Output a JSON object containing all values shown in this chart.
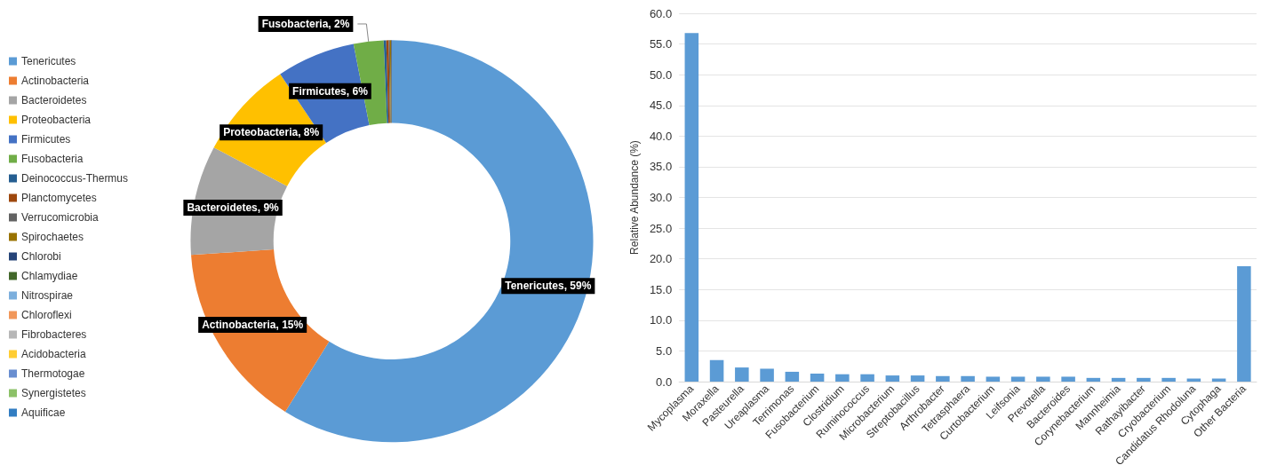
{
  "chart_data": [
    {
      "type": "donut",
      "categories": [
        "Tenericutes",
        "Actinobacteria",
        "Bacteroidetes",
        "Proteobacteria",
        "Firmicutes",
        "Fusobacteria",
        "Deinococcus-Thermus",
        "Planctomycetes",
        "Verrucomicrobia",
        "Spirochaetes",
        "Chlorobi",
        "Chlamydiae",
        "Nitrospirae",
        "Chloroflexi",
        "Fibrobacteres",
        "Acidobacteria",
        "Thermotogae",
        "Synergistetes",
        "Aquificae"
      ],
      "values": [
        58.8,
        15.0,
        8.8,
        7.9,
        6.3,
        2.4,
        0.2,
        0.2,
        0.1,
        0.1,
        0.05,
        null,
        null,
        null,
        null,
        null,
        null,
        null,
        null
      ],
      "colors": [
        "#5b9bd5",
        "#ed7d31",
        "#a5a5a5",
        "#ffc000",
        "#4472c4",
        "#70ad47",
        "#255e91",
        "#9e480e",
        "#636363",
        "#997300",
        "#264478",
        "#43682b",
        "#7cafdd",
        "#f1975a",
        "#b7b7b7",
        "#ffcd33",
        "#698ed0",
        "#8cc168",
        "#327dc2"
      ],
      "value_labels": [
        "Tenericutes, 59%",
        "Actinobacteria, 15%",
        "Bacteroidetes, 9%",
        "Proteobacteria, 8%",
        "Firmicutes, 6%",
        "Fusobacteria, 2%",
        null,
        null,
        null,
        null,
        null,
        null,
        null,
        null,
        null,
        null,
        null,
        null,
        null
      ],
      "legend": "left"
    },
    {
      "type": "bar",
      "ylabel": "Relative Abundance (%)",
      "categories": [
        "Mycoplasma",
        "Moraxella",
        "Pasteurella",
        "Ureaplasma",
        "Terrimonas",
        "Fusobacterium",
        "Clostridium",
        "Ruminococcus",
        "Microbacterium",
        "Streptobacillus",
        "Arthrobacter",
        "Tetrasphaera",
        "Curtobacterium",
        "Leifsonia",
        "Prevotella",
        "Bacteroides",
        "Corynebacterium",
        "Mannheimia",
        "Rathayibacter",
        "Cryobacterium",
        "Candidatus Rhodoluna",
        "Cytophaga",
        "Other Bacteria"
      ],
      "values": [
        56.8,
        3.5,
        2.3,
        2.1,
        1.6,
        1.3,
        1.2,
        1.2,
        1.0,
        1.0,
        0.9,
        0.9,
        0.8,
        0.8,
        0.8,
        0.8,
        0.6,
        0.6,
        0.6,
        0.6,
        0.5,
        0.5,
        18.8
      ],
      "color": "#5b9bd5",
      "ylim": [
        0,
        60
      ],
      "yticks": [
        {
          "value": 0,
          "label": "0.0"
        },
        {
          "value": 5,
          "label": "5.0"
        },
        {
          "value": 10,
          "label": "10.0"
        },
        {
          "value": 15,
          "label": "15.0"
        },
        {
          "value": 20,
          "label": "20.0"
        },
        {
          "value": 25,
          "label": "25.0"
        },
        {
          "value": 30,
          "label": "30.0"
        },
        {
          "value": 35,
          "label": "35.0"
        },
        {
          "value": 40,
          "label": "40.0"
        },
        {
          "value": 45,
          "label": "45.0"
        },
        {
          "value": 50,
          "label": "50.0"
        },
        {
          "value": 55,
          "label": "55.0"
        },
        {
          "value": 60,
          "label": "60.0"
        }
      ],
      "grid": "y",
      "legend": false
    }
  ]
}
